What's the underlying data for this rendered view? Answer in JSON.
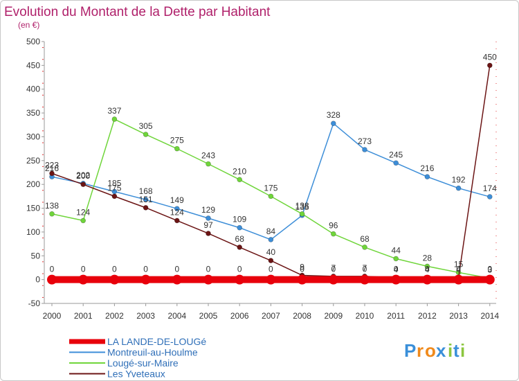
{
  "chart_data": {
    "type": "line",
    "title": "Evolution du Montant de la Dette par Habitant",
    "subtitle": "(en €)",
    "xlabel": "",
    "ylabel": "",
    "categories": [
      "2000",
      "2001",
      "2002",
      "2003",
      "2004",
      "2005",
      "2006",
      "2007",
      "2008",
      "2009",
      "2010",
      "2011",
      "2012",
      "2013",
      "2014"
    ],
    "ylim": [
      -50,
      500
    ],
    "yticks": [
      -50,
      0,
      50,
      100,
      150,
      200,
      250,
      300,
      350,
      400,
      450,
      500
    ],
    "grid": false,
    "legend_position": "bottom-left",
    "series": [
      {
        "name": "LA LANDE-DE-LOUGé",
        "color": "#e8000b",
        "values": [
          0,
          0,
          0,
          0,
          0,
          0,
          0,
          0,
          0,
          0,
          0,
          0,
          0,
          0,
          0
        ],
        "labels": [
          "0",
          "0",
          "0",
          "0",
          "0",
          "0",
          "0",
          "0",
          "0",
          "0",
          "0",
          "0",
          "0",
          "0",
          "0"
        ]
      },
      {
        "name": "Montreuil-au-Houlme",
        "color": "#3d8ed8",
        "values": [
          216,
          202,
          185,
          168,
          149,
          129,
          109,
          84,
          135,
          328,
          273,
          245,
          216,
          192,
          174
        ],
        "labels": [
          "216",
          "202",
          "185",
          "168",
          "149",
          "129",
          "109",
          "84",
          "135",
          "328",
          "273",
          "245",
          "216",
          "192",
          "174"
        ]
      },
      {
        "name": "Lougé-sur-Maire",
        "color": "#6fd53a",
        "values": [
          138,
          124,
          337,
          305,
          275,
          243,
          210,
          175,
          138,
          96,
          68,
          44,
          28,
          15,
          3
        ],
        "labels": [
          "138",
          "124",
          "337",
          "305",
          "275",
          "243",
          "210",
          "175",
          "138",
          "96",
          "68",
          "44",
          "28",
          "15",
          "3"
        ]
      },
      {
        "name": "Les Yveteaux",
        "color": "#6b1414",
        "values": [
          223,
          200,
          175,
          151,
          124,
          97,
          68,
          40,
          9,
          7,
          7,
          4,
          4,
          4,
          450
        ],
        "labels": [
          "223",
          "200",
          "175",
          "151",
          "124",
          "97",
          "68",
          "40",
          "9",
          "7",
          "7",
          "4",
          "4",
          "4",
          "450"
        ]
      }
    ]
  },
  "logo": {
    "text": "Proxiti",
    "letters": [
      "P",
      "r",
      "o",
      "x",
      "i",
      "t",
      "i"
    ],
    "colors": [
      "#3a8fd9",
      "#f08a1c",
      "#f08a1c",
      "#3a8fd9",
      "#8cc63f",
      "#3a8fd9",
      "#8cc63f"
    ]
  }
}
